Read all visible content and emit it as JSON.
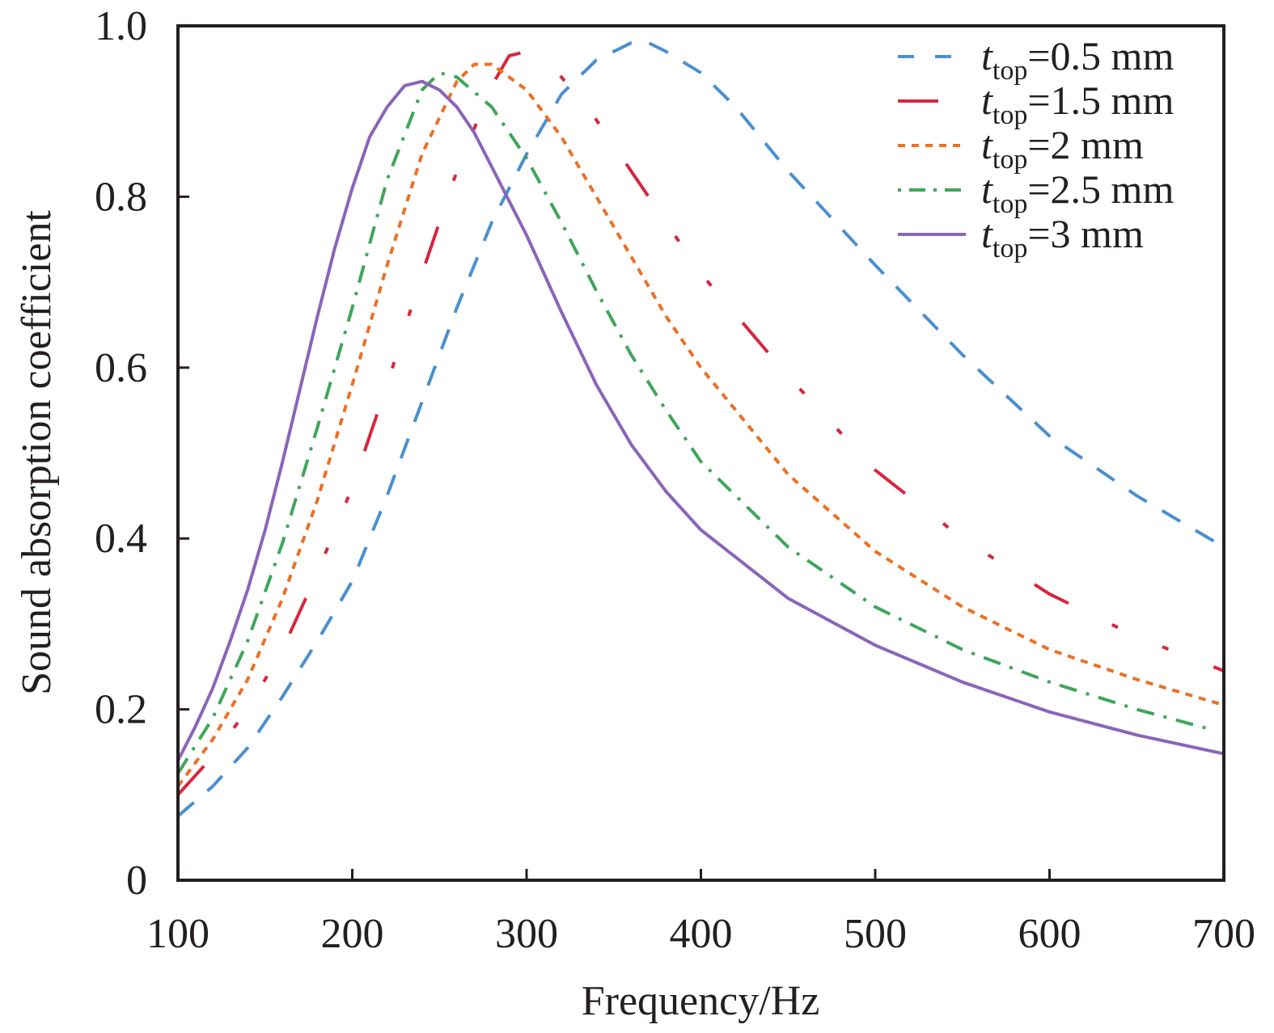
{
  "chart_data": {
    "type": "line",
    "title": "",
    "xlabel": "Frequency/Hz",
    "ylabel": "Sound absorption coefficient",
    "xlim": [
      100,
      700
    ],
    "ylim": [
      0,
      1.0
    ],
    "x_ticks": [
      100,
      200,
      300,
      400,
      500,
      600,
      700
    ],
    "x_tick_labels": [
      "100",
      "200",
      "300",
      "400",
      "500",
      "600",
      "700"
    ],
    "y_ticks": [
      0,
      0.2,
      0.4,
      0.6,
      0.8,
      1.0
    ],
    "y_tick_labels": [
      "0",
      "0.2",
      "0.4",
      "0.6",
      "0.8",
      "1.0"
    ],
    "grid": false,
    "legend_position": "top-right",
    "series": [
      {
        "name": "t_top=0.5 mm",
        "legend_var": "t",
        "legend_sub": "top",
        "legend_rest": "=0.5 mm",
        "color": "#4a90d0",
        "style": "dashed",
        "x": [
          100,
          120,
          140,
          160,
          180,
          200,
          220,
          240,
          260,
          280,
          300,
          320,
          340,
          360,
          370,
          380,
          400,
          420,
          450,
          500,
          550,
          600,
          650,
          700
        ],
        "y": [
          0.075,
          0.11,
          0.155,
          0.215,
          0.28,
          0.35,
          0.45,
          0.56,
          0.67,
          0.77,
          0.85,
          0.92,
          0.96,
          0.98,
          0.98,
          0.97,
          0.945,
          0.905,
          0.83,
          0.72,
          0.615,
          0.52,
          0.45,
          0.39
        ]
      },
      {
        "name": "t_top=1.5 mm",
        "legend_var": "t",
        "legend_sub": "top",
        "legend_rest": "=1.5 mm",
        "color": "#d7263d",
        "style": "long-dash-dot-dot",
        "x": [
          100,
          120,
          140,
          160,
          180,
          200,
          220,
          240,
          260,
          280,
          290,
          300,
          310,
          320,
          340,
          360,
          380,
          400,
          450,
          500,
          550,
          600,
          650,
          700
        ],
        "y": [
          0.1,
          0.145,
          0.2,
          0.27,
          0.36,
          0.46,
          0.58,
          0.71,
          0.83,
          0.93,
          0.965,
          0.97,
          0.96,
          0.94,
          0.89,
          0.83,
          0.77,
          0.71,
          0.59,
          0.48,
          0.4,
          0.335,
          0.285,
          0.245
        ]
      },
      {
        "name": "t_top=2 mm",
        "legend_var": "t",
        "legend_sub": "top",
        "legend_rest": "=2 mm",
        "color": "#ea7125",
        "style": "dotted",
        "x": [
          100,
          120,
          140,
          160,
          180,
          200,
          220,
          240,
          260,
          270,
          280,
          300,
          320,
          340,
          360,
          380,
          400,
          450,
          500,
          550,
          600,
          650,
          700
        ],
        "y": [
          0.11,
          0.165,
          0.235,
          0.33,
          0.445,
          0.58,
          0.72,
          0.85,
          0.935,
          0.955,
          0.955,
          0.925,
          0.87,
          0.8,
          0.73,
          0.66,
          0.6,
          0.475,
          0.385,
          0.32,
          0.27,
          0.235,
          0.205
        ]
      },
      {
        "name": "t_top=2.5 mm",
        "legend_var": "t",
        "legend_sub": "top",
        "legend_rest": "=2.5 mm",
        "color": "#3fa65a",
        "style": "dash-dot",
        "x": [
          100,
          120,
          140,
          160,
          180,
          200,
          220,
          240,
          250,
          260,
          280,
          300,
          320,
          340,
          360,
          380,
          400,
          450,
          500,
          550,
          600,
          650,
          690
        ],
        "y": [
          0.125,
          0.19,
          0.28,
          0.395,
          0.53,
          0.67,
          0.82,
          0.925,
          0.945,
          0.94,
          0.905,
          0.845,
          0.77,
          0.69,
          0.615,
          0.55,
          0.49,
          0.39,
          0.32,
          0.27,
          0.232,
          0.2,
          0.178
        ]
      },
      {
        "name": "t_top=3 mm",
        "legend_var": "t",
        "legend_sub": "top",
        "legend_rest": "=3 mm",
        "color": "#8a65b8",
        "style": "solid",
        "x": [
          100,
          110,
          120,
          130,
          140,
          150,
          160,
          170,
          180,
          190,
          200,
          210,
          220,
          230,
          240,
          250,
          260,
          270,
          280,
          300,
          320,
          340,
          360,
          380,
          400,
          450,
          500,
          550,
          600,
          650,
          700
        ],
        "y": [
          0.14,
          0.18,
          0.225,
          0.28,
          0.34,
          0.41,
          0.49,
          0.575,
          0.66,
          0.74,
          0.81,
          0.87,
          0.905,
          0.93,
          0.935,
          0.925,
          0.905,
          0.875,
          0.835,
          0.755,
          0.665,
          0.58,
          0.51,
          0.455,
          0.41,
          0.33,
          0.275,
          0.232,
          0.197,
          0.17,
          0.148
        ]
      }
    ]
  }
}
